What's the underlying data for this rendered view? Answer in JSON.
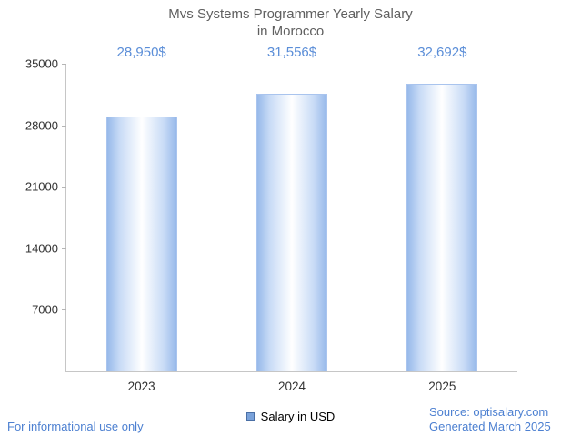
{
  "title": {
    "line1": "Mvs Systems Programmer Yearly Salary",
    "line2": "in Morocco"
  },
  "chart_data": {
    "type": "bar",
    "title": "Mvs Systems Programmer Yearly Salary in Morocco",
    "categories": [
      "2023",
      "2024",
      "2025"
    ],
    "values": [
      28950,
      31556,
      32692
    ],
    "value_labels": [
      "28,950$",
      "31,556$",
      "32,692$"
    ],
    "series": [
      {
        "name": "Salary in USD",
        "values": [
          28950,
          31556,
          32692
        ]
      }
    ],
    "xlabel": "",
    "ylabel": "",
    "ylim": [
      0,
      35000
    ],
    "yticks": [
      7000,
      14000,
      21000,
      28000,
      35000
    ],
    "grid": false,
    "legend_position": "bottom"
  },
  "legend": {
    "label": "Salary in USD",
    "swatch_color": "#7aa2da"
  },
  "footer": {
    "left": "For informational use only",
    "source": "Source: optisalary.com",
    "generated": "Generated March 2025"
  },
  "colors": {
    "bar_edge": "#97b9ea",
    "bar_center": "#ffffff",
    "bar_border": "#a9c4ee",
    "value_label": "#5b8ed8",
    "footer_text": "#4d80d1",
    "title_text": "#5f5f5f",
    "axis_line": "#c6c6c6"
  }
}
